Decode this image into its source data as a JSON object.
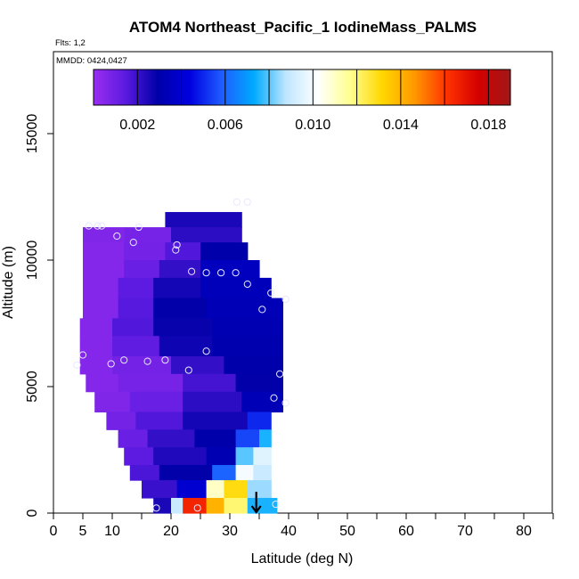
{
  "chart_data": {
    "type": "heatmap",
    "title": "ATOM4 Northeast_Pacific_1 IodineMass_PALMS",
    "flights_label": "Flts: 1,2",
    "dates_label": "MMDD: 0424,0427",
    "xlabel": "Latitude (deg N)",
    "ylabel": "Altitude (m)",
    "xlim": [
      0,
      85
    ],
    "ylim": [
      0,
      17500
    ],
    "x_ticks": [
      0,
      5,
      10,
      20,
      30,
      40,
      50,
      60,
      70,
      80
    ],
    "x_minor_ticks": [
      15,
      25,
      35,
      45,
      55,
      65,
      75,
      85
    ],
    "y_ticks": [
      0,
      5000,
      10000,
      15000
    ],
    "colorbar": {
      "range": [
        0,
        0.019
      ],
      "ticks": [
        0.002,
        0.006,
        0.01,
        0.014,
        0.018
      ],
      "tick_labels": [
        "0.002",
        "0.006",
        "0.010",
        "0.014",
        "0.018"
      ],
      "dividers": [
        0.004,
        0.008,
        0.012,
        0.016
      ],
      "colors": [
        "#9a2ef0",
        "#5a1ae0",
        "#0000a8",
        "#0000e0",
        "#1e5cff",
        "#00aaff",
        "#bfe6ff",
        "#ffffff",
        "#ffff90",
        "#ffd700",
        "#ff9900",
        "#ff3300",
        "#d40000",
        "#a01818"
      ]
    },
    "grid": {
      "rows": [
        {
          "y0": 11300,
          "y1": 11900,
          "segs": [
            [
              19,
              32,
              0.0025
            ]
          ]
        },
        {
          "y0": 10700,
          "y1": 11300,
          "segs": [
            [
              5,
              12,
              0.0006
            ],
            [
              12,
              20,
              0.0008
            ],
            [
              20,
              32,
              0.0022
            ]
          ]
        },
        {
          "y0": 10000,
          "y1": 10700,
          "segs": [
            [
              5,
              12,
              0.0005
            ],
            [
              12,
              19,
              0.0009
            ],
            [
              19,
              25,
              0.0016
            ],
            [
              25,
              33,
              0.003
            ]
          ]
        },
        {
          "y0": 9300,
          "y1": 10000,
          "segs": [
            [
              5,
              12,
              0.0005
            ],
            [
              12,
              18,
              0.0011
            ],
            [
              18,
              25,
              0.0021
            ],
            [
              25,
              35,
              0.0035
            ]
          ]
        },
        {
          "y0": 8500,
          "y1": 9300,
          "segs": [
            [
              5,
              11,
              0.0005
            ],
            [
              11,
              17,
              0.0014
            ],
            [
              17,
              25,
              0.0026
            ],
            [
              25,
              37,
              0.0034
            ]
          ]
        },
        {
          "y0": 7700,
          "y1": 8500,
          "segs": [
            [
              5,
              11,
              0.0005
            ],
            [
              11,
              17,
              0.0015
            ],
            [
              17,
              26,
              0.0029
            ],
            [
              26,
              39,
              0.0033
            ]
          ]
        },
        {
          "y0": 7000,
          "y1": 7700,
          "segs": [
            [
              4.5,
              10,
              0.0005
            ],
            [
              10,
              17,
              0.0016
            ],
            [
              17,
              27,
              0.0028
            ],
            [
              27,
              39,
              0.0032
            ]
          ]
        },
        {
          "y0": 6200,
          "y1": 7000,
          "segs": [
            [
              4.5,
              10,
              0.0005
            ],
            [
              10,
              18,
              0.0013
            ],
            [
              18,
              27,
              0.0027
            ],
            [
              27,
              39,
              0.0031
            ]
          ]
        },
        {
          "y0": 5500,
          "y1": 6200,
          "segs": [
            [
              4.5,
              10,
              0.0005
            ],
            [
              10,
              20,
              0.0009
            ],
            [
              20,
              29,
              0.0021
            ],
            [
              29,
              39,
              0.003
            ]
          ]
        },
        {
          "y0": 4800,
          "y1": 5500,
          "segs": [
            [
              5.5,
              11,
              0.0005
            ],
            [
              11,
              22,
              0.0008
            ],
            [
              22,
              31,
              0.0018
            ],
            [
              31,
              39,
              0.0029
            ]
          ]
        },
        {
          "y0": 4000,
          "y1": 4800,
          "segs": [
            [
              7,
              13,
              0.0006
            ],
            [
              13,
              22,
              0.0011
            ],
            [
              22,
              32,
              0.0022
            ],
            [
              32,
              39,
              0.0033
            ]
          ]
        },
        {
          "y0": 3300,
          "y1": 4000,
          "segs": [
            [
              9,
              14,
              0.0009
            ],
            [
              14,
              22,
              0.0016
            ],
            [
              22,
              33,
              0.0026
            ],
            [
              33,
              37,
              0.005
            ]
          ]
        },
        {
          "y0": 2600,
          "y1": 3300,
          "segs": [
            [
              11,
              16,
              0.0011
            ],
            [
              16,
              24,
              0.0021
            ],
            [
              24,
              31,
              0.003
            ],
            [
              31,
              35,
              0.0055
            ],
            [
              35,
              37,
              0.0075
            ]
          ]
        },
        {
          "y0": 1900,
          "y1": 2600,
          "segs": [
            [
              12,
              17,
              0.0014
            ],
            [
              17,
              26,
              0.0024
            ],
            [
              26,
              31,
              0.0032
            ],
            [
              31,
              34,
              0.008
            ],
            [
              34,
              37,
              0.0095
            ]
          ]
        },
        {
          "y0": 1300,
          "y1": 1900,
          "segs": [
            [
              13,
              18,
              0.0017
            ],
            [
              18,
              27,
              0.0029
            ],
            [
              27,
              31,
              0.006
            ],
            [
              31,
              34,
              0.01
            ],
            [
              34,
              37,
              0.009
            ]
          ]
        },
        {
          "y0": 600,
          "y1": 1300,
          "segs": [
            [
              15,
              21,
              0.002
            ],
            [
              21,
              26,
              0.004
            ],
            [
              26,
              29,
              0.011
            ],
            [
              29,
              33,
              0.013
            ],
            [
              33,
              37,
              0.0085
            ]
          ]
        },
        {
          "y0": 0,
          "y1": 600,
          "segs": [
            [
              17,
              20,
              0.0025
            ],
            [
              20,
              22,
              0.009
            ],
            [
              22,
              26,
              0.0165
            ],
            [
              26,
              29,
              0.014
            ],
            [
              29,
              33,
              0.012
            ],
            [
              33,
              38,
              0.0075
            ]
          ]
        }
      ]
    },
    "points": [
      {
        "x": 31.2,
        "y": 12300
      },
      {
        "x": 33.0,
        "y": 12300
      },
      {
        "x": 6.0,
        "y": 11350
      },
      {
        "x": 7.5,
        "y": 11350
      },
      {
        "x": 8.2,
        "y": 11350
      },
      {
        "x": 14.5,
        "y": 11300
      },
      {
        "x": 10.8,
        "y": 10950
      },
      {
        "x": 13.6,
        "y": 10700
      },
      {
        "x": 21.0,
        "y": 10600
      },
      {
        "x": 20.8,
        "y": 10400
      },
      {
        "x": 23.5,
        "y": 9550
      },
      {
        "x": 26.0,
        "y": 9500
      },
      {
        "x": 28.5,
        "y": 9500
      },
      {
        "x": 31.0,
        "y": 9500
      },
      {
        "x": 33.0,
        "y": 9050
      },
      {
        "x": 37.0,
        "y": 8700
      },
      {
        "x": 39.5,
        "y": 8450
      },
      {
        "x": 35.5,
        "y": 8050
      },
      {
        "x": 26.0,
        "y": 6400
      },
      {
        "x": 5.0,
        "y": 6250
      },
      {
        "x": 4.0,
        "y": 5850
      },
      {
        "x": 9.8,
        "y": 5900
      },
      {
        "x": 12.0,
        "y": 6050
      },
      {
        "x": 16.0,
        "y": 6000
      },
      {
        "x": 19.0,
        "y": 6050
      },
      {
        "x": 23.0,
        "y": 5650
      },
      {
        "x": 38.5,
        "y": 5500
      },
      {
        "x": 37.5,
        "y": 4550
      },
      {
        "x": 39.5,
        "y": 4350
      },
      {
        "x": 17.5,
        "y": 200
      },
      {
        "x": 24.5,
        "y": 200
      },
      {
        "x": 37.8,
        "y": 350
      }
    ],
    "arrow": {
      "x": 34.5,
      "y_from": 700,
      "y_to": 0
    }
  }
}
